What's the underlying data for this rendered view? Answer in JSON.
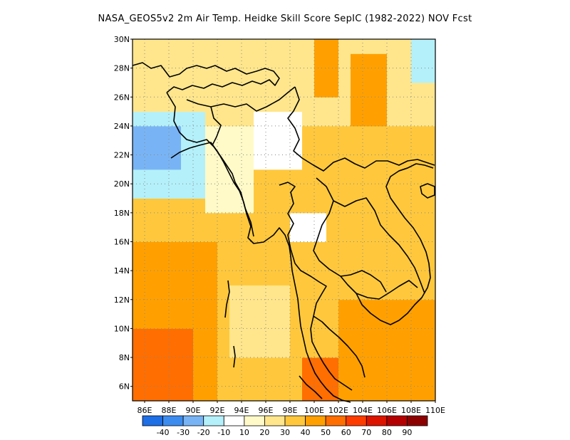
{
  "title": "NASA_GEOS5v2  2m Air Temp. Heidke Skill Score SepIC (1982-2022) NOV Fcst",
  "map": {
    "lon_range": [
      85,
      110
    ],
    "lat_range": [
      5,
      30
    ],
    "lon_ticks": [
      "86E",
      "88E",
      "90E",
      "92E",
      "94E",
      "96E",
      "98E",
      "100E",
      "102E",
      "104E",
      "106E",
      "108E",
      "110E"
    ],
    "lat_ticks": [
      "30N",
      "28N",
      "26N",
      "24N",
      "22N",
      "20N",
      "18N",
      "16N",
      "14N",
      "12N",
      "10N",
      "8N",
      "6N"
    ],
    "grid": "dotted",
    "coastlines": true,
    "borders": true
  },
  "colorbar": {
    "labels": [
      "-40",
      "-30",
      "-20",
      "-10",
      "10",
      "20",
      "30",
      "40",
      "50",
      "60",
      "70",
      "80",
      "90"
    ],
    "colors": [
      "#1e6ee6",
      "#3c8cf0",
      "#78b4f5",
      "#b4f0fa",
      "#ffffff",
      "#fffac8",
      "#ffe68c",
      "#ffc83c",
      "#ffa000",
      "#ff6e00",
      "#ff3c00",
      "#dc1400",
      "#b40000",
      "#8c0000"
    ]
  },
  "field_classes": [
    "#1e6ee6",
    "#3c8cf0",
    "#78b4f5",
    "#b4f0fa",
    "#ffffff",
    "#fffac8",
    "#ffe68c",
    "#ffc83c",
    "#ffa000",
    "#ff6e00",
    "#ff3c00"
  ]
}
